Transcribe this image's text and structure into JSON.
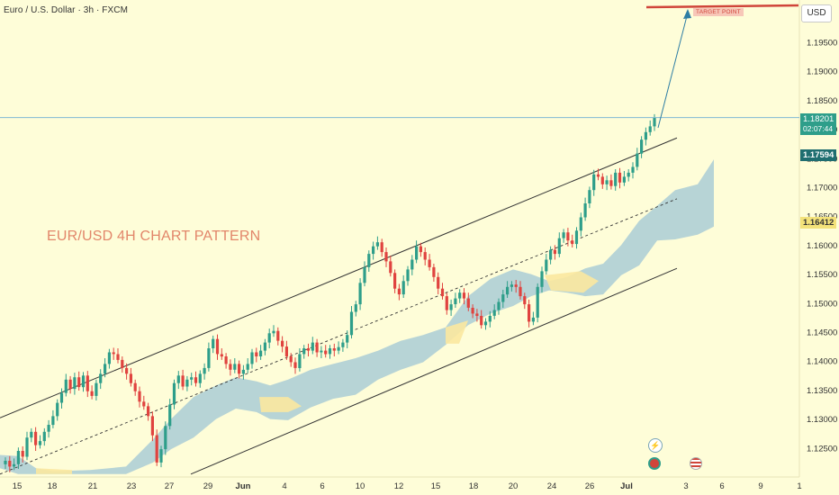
{
  "header": {
    "symbol": "Euro / U.S. Dollar · 3h · FXCM",
    "currency": "USD",
    "pattern_title": "EUR/USD 4H CHART PATTERN",
    "target_label": "TARGET POINT"
  },
  "price_tags": {
    "last": "1.18201",
    "countdown": "02:07:44",
    "level_a": "1.17594",
    "level_b": "1.16412"
  },
  "colors": {
    "background": "#fefdd8",
    "bull": "#2e9e8a",
    "bear": "#e0433f",
    "channel": "#333333",
    "cloud_bull": "#9fc6d6",
    "cloud_bear": "#fbe8a0",
    "target": "#d0453a",
    "last_price": "#2e9e8a"
  },
  "icons": [
    "flash-icon",
    "event-icon",
    "us-flag-icon"
  ],
  "chart_data": {
    "type": "candlestick",
    "title": "EUR/USD 4H CHART PATTERN",
    "x_tick_labels": [
      "15",
      "18",
      "21",
      "23",
      "27",
      "29",
      "Jun",
      "4",
      "6",
      "10",
      "12",
      "15",
      "18",
      "20",
      "24",
      "26",
      "Jul",
      "3",
      "6",
      "9",
      "1"
    ],
    "y_tick_labels": [
      "1.19500",
      "1.19000",
      "1.18500",
      "1.18000",
      "1.17500",
      "1.17000",
      "1.16500",
      "1.16000",
      "1.15500",
      "1.15000",
      "1.14500",
      "1.14000",
      "1.13500",
      "1.13000",
      "1.12500"
    ],
    "ylim": [
      1.1205,
      1.2003
    ],
    "target_price": 1.2,
    "last_price": 1.18201,
    "channel_upper": [
      [
        1.1302,
        1.1785
      ]
    ],
    "channel_lower": [
      [
        1.1205,
        1.156
      ]
    ],
    "channel_mid": [
      [
        1.1205,
        1.168
      ]
    ],
    "close_series": [
      1.1228,
      1.1218,
      1.1222,
      1.1245,
      1.1235,
      1.1268,
      1.1278,
      1.1255,
      1.1262,
      1.1278,
      1.129,
      1.1305,
      1.1328,
      1.1345,
      1.1368,
      1.1352,
      1.1372,
      1.1355,
      1.1375,
      1.1348,
      1.134,
      1.1362,
      1.1378,
      1.1395,
      1.1415,
      1.1412,
      1.1402,
      1.1388,
      1.1378,
      1.1362,
      1.1348,
      1.133,
      1.1322,
      1.1305,
      1.1272,
      1.1225,
      1.1248,
      1.1288,
      1.1325,
      1.1362,
      1.1375,
      1.1356,
      1.1368,
      1.1372,
      1.1362,
      1.1378,
      1.1388,
      1.1422,
      1.1438,
      1.1412,
      1.1408,
      1.1395,
      1.1385,
      1.1395,
      1.1378,
      1.1385,
      1.1395,
      1.1415,
      1.1408,
      1.1418,
      1.1432,
      1.1448,
      1.1452,
      1.1435,
      1.1425,
      1.1408,
      1.1398,
      1.1388,
      1.1412,
      1.1422,
      1.1418,
      1.1432,
      1.1415,
      1.1418,
      1.1412,
      1.1422,
      1.1418,
      1.1424,
      1.1432,
      1.1445,
      1.1485,
      1.1498,
      1.1535,
      1.1562,
      1.1585,
      1.1598,
      1.1605,
      1.1588,
      1.1572,
      1.1552,
      1.1525,
      1.1515,
      1.1538,
      1.1558,
      1.1575,
      1.1598,
      1.1588,
      1.1575,
      1.1562,
      1.1545,
      1.1525,
      1.1512,
      1.1488,
      1.1498,
      1.1508,
      1.1518,
      1.1508,
      1.1492,
      1.1482,
      1.1478,
      1.1462,
      1.1468,
      1.1478,
      1.1488,
      1.1502,
      1.1515,
      1.1528,
      1.1532,
      1.1528,
      1.1512,
      1.1498,
      1.1468,
      1.1475,
      1.1528,
      1.1555,
      1.1575,
      1.1592,
      1.1585,
      1.1612,
      1.1622,
      1.1608,
      1.1602,
      1.1625,
      1.1648,
      1.1672,
      1.1695,
      1.1722,
      1.1718,
      1.1705,
      1.1712,
      1.1702,
      1.1725,
      1.1708,
      1.1718,
      1.1725,
      1.1735,
      1.1758,
      1.1782,
      1.1795,
      1.1805,
      1.182
    ]
  }
}
